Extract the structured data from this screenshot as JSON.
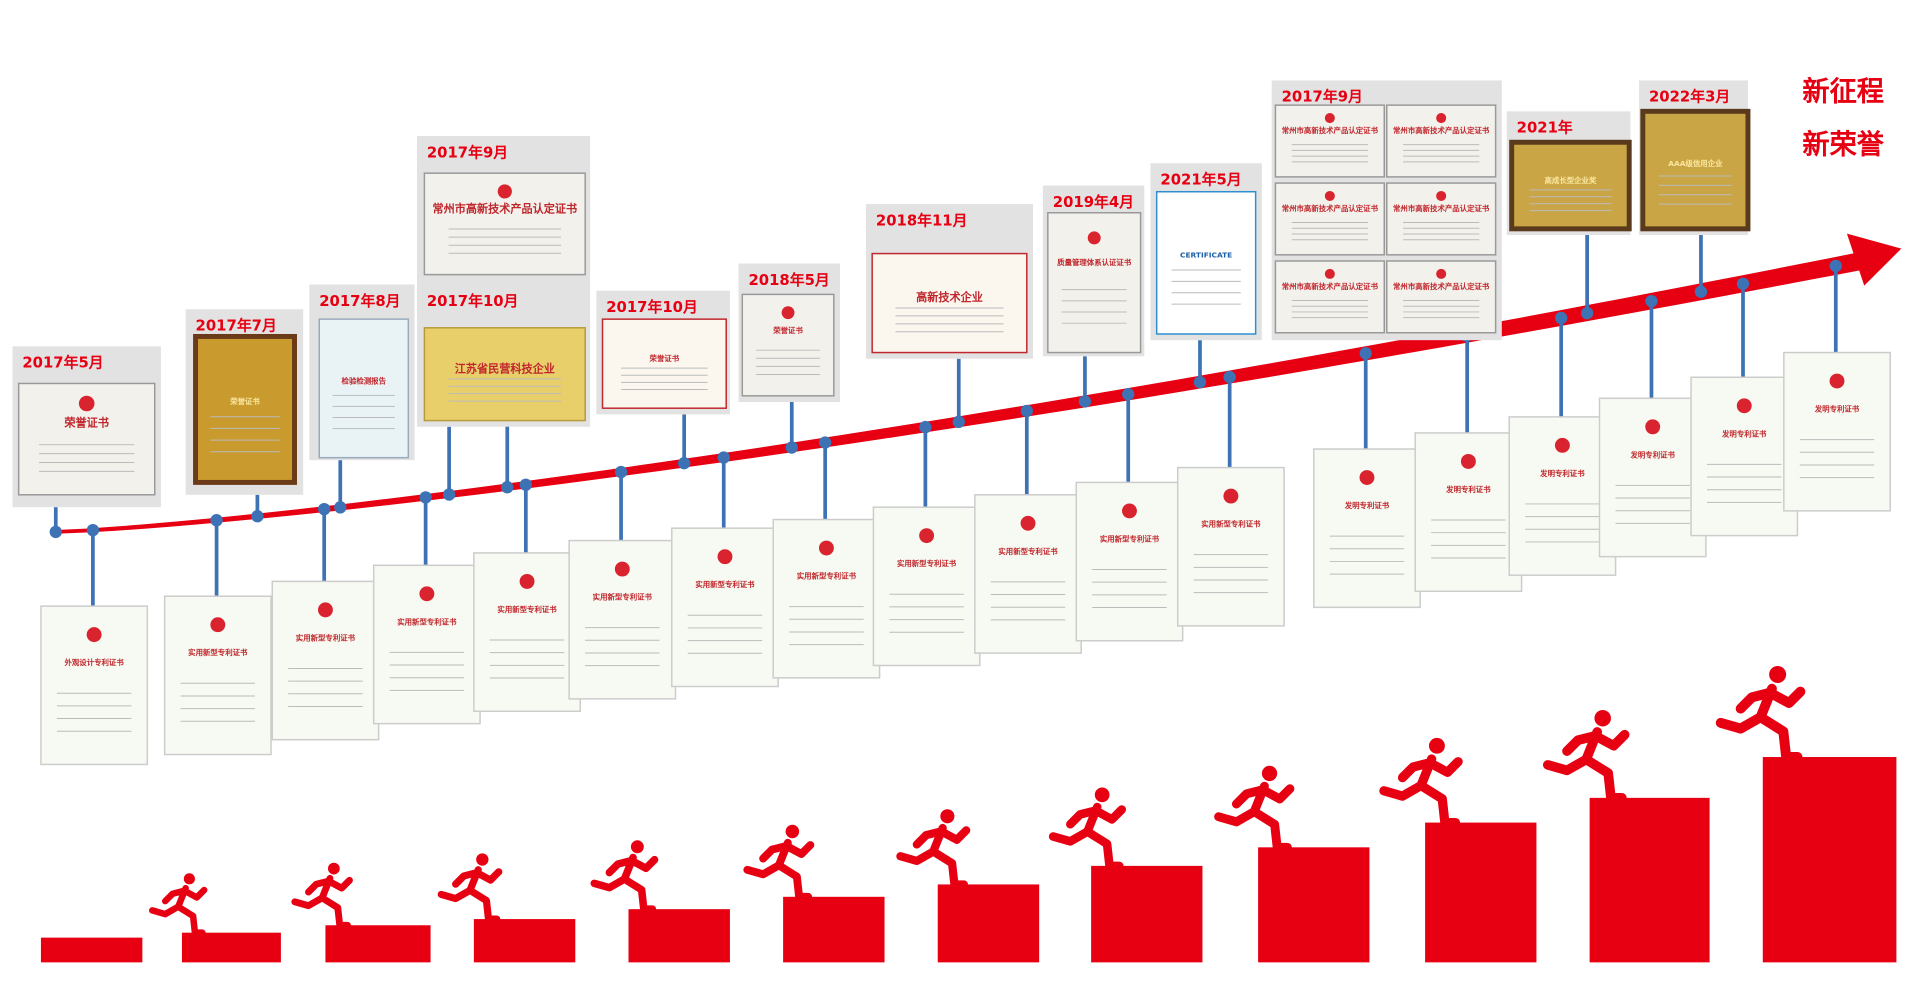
{
  "title_lines": [
    "新征程",
    "新荣誉"
  ],
  "milestones": [
    {
      "date": "2017年5月",
      "certificates": [
        "荣誉证书"
      ]
    },
    {
      "date": "2017年7月",
      "certificates": [
        "荣誉证书"
      ]
    },
    {
      "date": "2017年8月",
      "certificates": [
        "检验检测报告"
      ]
    },
    {
      "date": "2017年9月",
      "certificates": [
        "常州市高新技术产品认定证书"
      ]
    },
    {
      "date": "2017年10月",
      "certificates": [
        "江苏省民营科技企业"
      ]
    },
    {
      "date": "2017年10月",
      "certificates": [
        "荣誉证书"
      ]
    },
    {
      "date": "2018年5月",
      "certificates": [
        "荣誉证书"
      ]
    },
    {
      "date": "2018年11月",
      "certificates": [
        "高新技术企业"
      ]
    },
    {
      "date": "2019年4月",
      "certificates": [
        "质量管理体系认证证书"
      ]
    },
    {
      "date": "2021年5月",
      "certificates": [
        "CERTIFICATE"
      ]
    },
    {
      "date": "2017年9月",
      "certificates": [
        "常州市高新技术产品认定证书",
        "常州市高新技术产品认定证书",
        "常州市高新技术产品认定证书",
        "常州市高新技术产品认定证书",
        "常州市高新技术产品认定证书",
        "常州市高新技术产品认定证书"
      ]
    },
    {
      "date": "2021年",
      "certificates": [
        "高成长型企业奖"
      ]
    },
    {
      "date": "2022年3月",
      "certificates": [
        "AAA级信用企业"
      ]
    }
  ],
  "patents": [
    "外观设计专利证书",
    "实用新型专利证书",
    "实用新型专利证书",
    "实用新型专利证书",
    "实用新型专利证书",
    "实用新型专利证书",
    "实用新型专利证书",
    "实用新型专利证书",
    "实用新型专利证书",
    "实用新型专利证书",
    "实用新型专利证书",
    "实用新型专利证书",
    "发明专利证书",
    "发明专利证书",
    "发明专利证书",
    "发明专利证书",
    "发明专利证书",
    "发明专利证书"
  ]
}
